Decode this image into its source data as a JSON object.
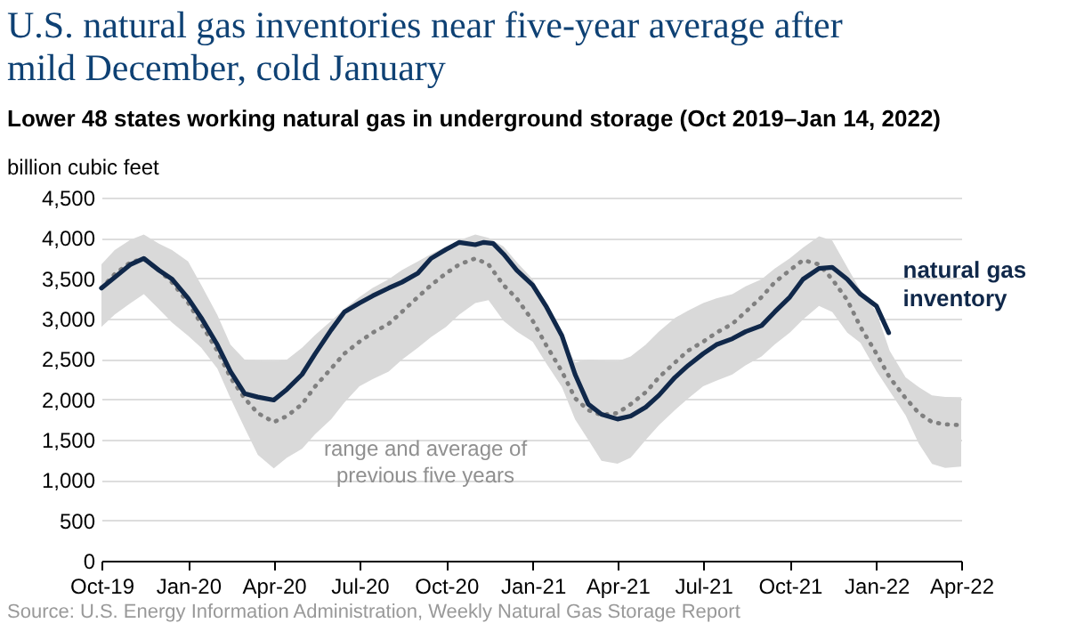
{
  "chart_data": {
    "type": "line",
    "title": "U.S. natural gas inventories near five-year average after mild December, cold January",
    "subtitle": "Lower 48 states working natural gas in underground storage (Oct 2019–Jan 14, 2022)",
    "ylabel": "billion cubic feet",
    "xlim": [
      "2019-10-01",
      "2022-04-01"
    ],
    "xticks": [
      {
        "value": "2019-10-01",
        "label": "Oct-19"
      },
      {
        "value": "2020-01-01",
        "label": "Jan-20"
      },
      {
        "value": "2020-04-01",
        "label": "Apr-20"
      },
      {
        "value": "2020-07-01",
        "label": "Jul-20"
      },
      {
        "value": "2020-10-01",
        "label": "Oct-20"
      },
      {
        "value": "2021-01-01",
        "label": "Jan-21"
      },
      {
        "value": "2021-04-01",
        "label": "Apr-21"
      },
      {
        "value": "2021-07-01",
        "label": "Jul-21"
      },
      {
        "value": "2021-10-01",
        "label": "Oct-21"
      },
      {
        "value": "2022-01-01",
        "label": "Jan-22"
      },
      {
        "value": "2022-04-01",
        "label": "Apr-22"
      }
    ],
    "ylim": [
      0,
      4500
    ],
    "yticks": [
      0,
      500,
      {
        "value": 1000,
        "label": "1,000"
      },
      {
        "value": 1500,
        "label": "1,500"
      },
      {
        "value": 2000,
        "label": "2,000"
      },
      {
        "value": 2500,
        "label": "2,500"
      },
      {
        "value": 3000,
        "label": "3,000"
      },
      {
        "value": 3500,
        "label": "3,500"
      },
      {
        "value": 4000,
        "label": "4,000"
      },
      {
        "value": 4500,
        "label": "4,500"
      }
    ],
    "grid": "y",
    "marker": "none",
    "series": [
      {
        "name": "range and average of previous five years",
        "color": "#808080",
        "line_style": "dotted",
        "x": [
          "2019-10-01",
          "2019-10-15",
          "2019-11-01",
          "2019-11-15",
          "2019-12-01",
          "2019-12-15",
          "2020-01-01",
          "2020-01-15",
          "2020-02-01",
          "2020-02-15",
          "2020-03-01",
          "2020-03-15",
          "2020-04-01",
          "2020-04-15",
          "2020-05-01",
          "2020-05-15",
          "2020-06-01",
          "2020-06-15",
          "2020-07-01",
          "2020-07-15",
          "2020-08-01",
          "2020-08-15",
          "2020-09-01",
          "2020-09-15",
          "2020-10-01",
          "2020-10-15",
          "2020-11-01",
          "2020-11-15",
          "2020-12-01",
          "2020-12-15",
          "2021-01-01",
          "2021-01-15",
          "2021-02-01",
          "2021-02-15",
          "2021-03-01",
          "2021-03-15",
          "2021-04-01",
          "2021-04-15",
          "2021-05-01",
          "2021-05-15",
          "2021-06-01",
          "2021-06-15",
          "2021-07-01",
          "2021-07-15",
          "2021-08-01",
          "2021-08-15",
          "2021-09-01",
          "2021-09-15",
          "2021-10-01",
          "2021-10-15",
          "2021-11-01",
          "2021-11-15",
          "2021-12-01",
          "2021-12-15",
          "2022-01-01",
          "2022-01-15",
          "2022-02-01",
          "2022-02-15",
          "2022-03-01",
          "2022-03-15",
          "2022-04-01"
        ],
        "values": [
          3380,
          3550,
          3700,
          3740,
          3600,
          3450,
          3200,
          2935,
          2603,
          2271,
          2013,
          1829,
          1718,
          1792,
          1940,
          2161,
          2382,
          2566,
          2714,
          2825,
          2935,
          3083,
          3267,
          3415,
          3562,
          3672,
          3746,
          3672,
          3415,
          3250,
          2972,
          2677,
          2345,
          2013,
          1866,
          1807,
          1829,
          1940,
          2087,
          2271,
          2456,
          2603,
          2714,
          2825,
          2935,
          3083,
          3267,
          3451,
          3599,
          3725,
          3672,
          3488,
          3230,
          2898,
          2566,
          2271,
          2013,
          1829,
          1718,
          1690,
          1681
        ],
        "lower": [
          2898,
          3050,
          3193,
          3304,
          3119,
          2950,
          2788,
          2640,
          2382,
          2013,
          1645,
          1313,
          1143,
          1276,
          1387,
          1570,
          1755,
          1960,
          2161,
          2250,
          2345,
          2490,
          2640,
          2770,
          2898,
          3050,
          3193,
          3230,
          2972,
          2840,
          2714,
          2450,
          2150,
          1750,
          1497,
          1239,
          1202,
          1276,
          1497,
          1680,
          1866,
          2010,
          2161,
          2230,
          2308,
          2420,
          2530,
          2680,
          2825,
          2990,
          3156,
          3083,
          2825,
          2700,
          2350,
          2100,
          1800,
          1450,
          1200,
          1150,
          1165
        ],
        "upper": [
          3672,
          3850,
          3980,
          4041,
          3930,
          3850,
          3709,
          3415,
          3046,
          2677,
          2493,
          2480,
          2471,
          2493,
          2640,
          2800,
          2972,
          3120,
          3267,
          3380,
          3488,
          3600,
          3709,
          3800,
          3894,
          3970,
          4041,
          4000,
          3894,
          3700,
          3488,
          3120,
          2751,
          2456,
          2493,
          2480,
          2471,
          2530,
          2677,
          2840,
          3009,
          3100,
          3193,
          3250,
          3304,
          3400,
          3488,
          3620,
          3746,
          3880,
          4019,
          3967,
          3636,
          3350,
          3083,
          2603,
          2271,
          2150,
          2050,
          2030,
          2028
        ]
      },
      {
        "name": "natural gas inventory",
        "color": "#10284a",
        "line_style": "solid",
        "x": [
          "2019-10-01",
          "2019-11-01",
          "2019-11-15",
          "2019-12-01",
          "2019-12-15",
          "2020-01-01",
          "2020-01-15",
          "2020-02-01",
          "2020-02-15",
          "2020-03-01",
          "2020-03-15",
          "2020-04-01",
          "2020-04-15",
          "2020-05-01",
          "2020-05-15",
          "2020-06-01",
          "2020-06-15",
          "2020-07-01",
          "2020-07-15",
          "2020-08-01",
          "2020-08-15",
          "2020-09-01",
          "2020-09-15",
          "2020-10-01",
          "2020-10-15",
          "2020-11-01",
          "2020-11-10",
          "2020-11-20",
          "2020-12-01",
          "2020-12-15",
          "2021-01-01",
          "2021-01-15",
          "2021-02-01",
          "2021-02-15",
          "2021-03-01",
          "2021-03-15",
          "2021-04-01",
          "2021-04-15",
          "2021-05-01",
          "2021-05-15",
          "2021-06-01",
          "2021-06-15",
          "2021-07-01",
          "2021-07-15",
          "2021-08-01",
          "2021-08-15",
          "2021-09-01",
          "2021-09-15",
          "2021-10-01",
          "2021-10-15",
          "2021-11-01",
          "2021-11-15",
          "2021-12-01",
          "2021-12-15",
          "2022-01-01",
          "2022-01-14"
        ],
        "values": [
          3378,
          3672,
          3746,
          3600,
          3490,
          3252,
          3009,
          2677,
          2345,
          2072,
          2028,
          1991,
          2124,
          2308,
          2566,
          2861,
          3083,
          3193,
          3282,
          3378,
          3451,
          3562,
          3746,
          3857,
          3945,
          3916,
          3945,
          3930,
          3800,
          3600,
          3415,
          3156,
          2788,
          2308,
          1940,
          1814,
          1755,
          1792,
          1903,
          2050,
          2271,
          2419,
          2566,
          2677,
          2751,
          2839,
          2913,
          3083,
          3267,
          3488,
          3621,
          3636,
          3488,
          3304,
          3156,
          2825
        ]
      }
    ],
    "annotations": [
      "Source: U.S. Energy Information Administration, Weekly Natural Gas Storage Report"
    ]
  }
}
